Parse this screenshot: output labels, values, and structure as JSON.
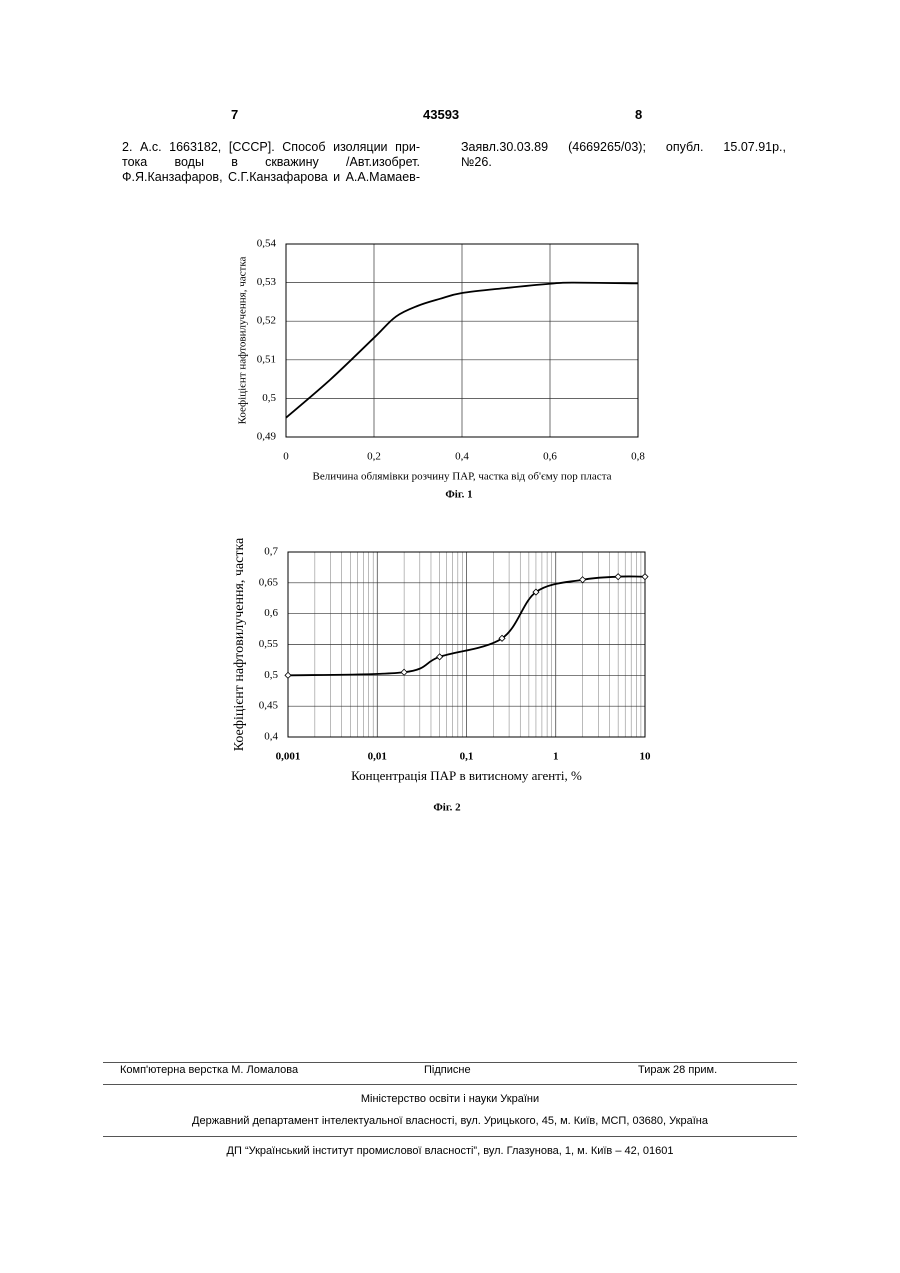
{
  "header": {
    "left_page": "7",
    "patent_number": "43593",
    "right_page": "8"
  },
  "reference": {
    "left_lines": [
      "2. А.с. 1663182, [СССР]. Способ изоляции при-",
      "тока воды в скважину /Авт.изобрет.",
      "Ф.Я.Канзафаров, С.Г.Канзафарова и А.А.Мамаев-"
    ],
    "right_lines": [
      "Заявл.30.03.89 (4669265/03); опубл. 15.07.91р.,",
      "№26."
    ]
  },
  "chart_data": [
    {
      "type": "line",
      "caption": "Фіг. 1",
      "x_label": "Величина облямівки розчину ПАР, частка від об'єму пор пласта",
      "y_label": "Коефіцієнт нафтовилучення, частка",
      "x": [
        0,
        0.1,
        0.2,
        0.25,
        0.3,
        0.35,
        0.4,
        0.5,
        0.6,
        0.65,
        0.8
      ],
      "values": [
        0.495,
        0.5048,
        0.5157,
        0.5212,
        0.524,
        0.5258,
        0.5273,
        0.5286,
        0.5297,
        0.53,
        0.5298
      ],
      "color": "#000000",
      "markers": false,
      "xlim": [
        0,
        0.8
      ],
      "xticks": [
        0,
        {
          "value": 0.2,
          "label": "0,2"
        },
        {
          "value": 0.4,
          "label": "0,4"
        },
        {
          "value": 0.6,
          "label": "0,6"
        },
        {
          "value": 0.8,
          "label": "0,8"
        }
      ],
      "ylim": [
        0.49,
        0.54
      ],
      "yticks": [
        {
          "value": 0.49,
          "label": "0,49"
        },
        {
          "value": 0.5,
          "label": "0,5"
        },
        {
          "value": 0.51,
          "label": "0,51"
        },
        {
          "value": 0.52,
          "label": "0,52"
        },
        {
          "value": 0.53,
          "label": "0,53"
        },
        {
          "value": 0.54,
          "label": "0,54"
        }
      ],
      "grid": true
    },
    {
      "type": "line",
      "caption": "Фіг. 2",
      "x_label": "Концентрація ПАР в витисному агенті, %",
      "y_label": "Коефіцієнт нафтовилучення, частка",
      "x": [
        0.001,
        0.02,
        0.05,
        0.25,
        0.6,
        2,
        5,
        10
      ],
      "values": [
        0.5,
        0.505,
        0.53,
        0.56,
        0.635,
        0.655,
        0.66,
        0.66
      ],
      "color": "#000000",
      "markers": true,
      "xscale": "log",
      "log_minor_grid": true,
      "xlim": [
        0.001,
        10
      ],
      "xticks": [
        {
          "value": 0.001,
          "label": "0,001"
        },
        {
          "value": 0.01,
          "label": "0,01"
        },
        {
          "value": 0.1,
          "label": "0,1"
        },
        1,
        10
      ],
      "ylim": [
        0.4,
        0.7
      ],
      "yticks": [
        {
          "value": 0.4,
          "label": "0,4"
        },
        {
          "value": 0.45,
          "label": "0,45"
        },
        {
          "value": 0.5,
          "label": "0,5"
        },
        {
          "value": 0.55,
          "label": "0,55"
        },
        {
          "value": 0.6,
          "label": "0,6"
        },
        {
          "value": 0.65,
          "label": "0,65"
        },
        {
          "value": 0.7,
          "label": "0,7"
        }
      ],
      "grid": true
    }
  ],
  "footer": {
    "layout": "Комп'ютерна верстка М. Ломалова",
    "signed": "Підписне",
    "circulation": "Тираж 28 прим.",
    "ministry": "Міністерство освіти і науки України",
    "department": "Державний департамент інтелектуальної власності, вул. Урицького, 45, м. Київ, МСП, 03680, Україна",
    "institute": "ДП “Український інститут промислової власності”, вул. Глазунова, 1, м. Київ – 42, 01601"
  }
}
